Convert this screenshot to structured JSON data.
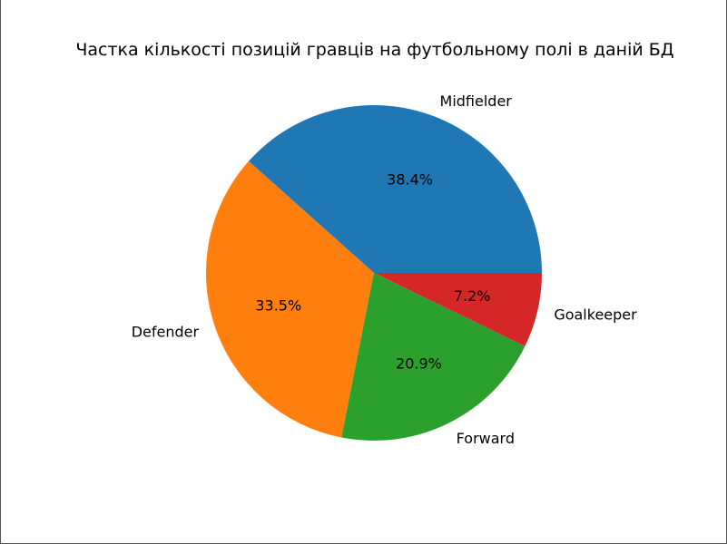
{
  "chart_data": {
    "type": "pie",
    "title": "Частка кількості позицій гравців на футбольному полі в даній БД",
    "categories": [
      "Midfielder",
      "Defender",
      "Forward",
      "Goalkeeper"
    ],
    "values": [
      38.4,
      33.5,
      20.9,
      7.2
    ],
    "pct_labels": [
      "38.4%",
      "33.5%",
      "20.9%",
      "7.2%"
    ],
    "colors": [
      "#1f77b4",
      "#ff7f0e",
      "#2ca02c",
      "#d62728"
    ],
    "start_angle": 0,
    "direction": "counterclockwise"
  }
}
